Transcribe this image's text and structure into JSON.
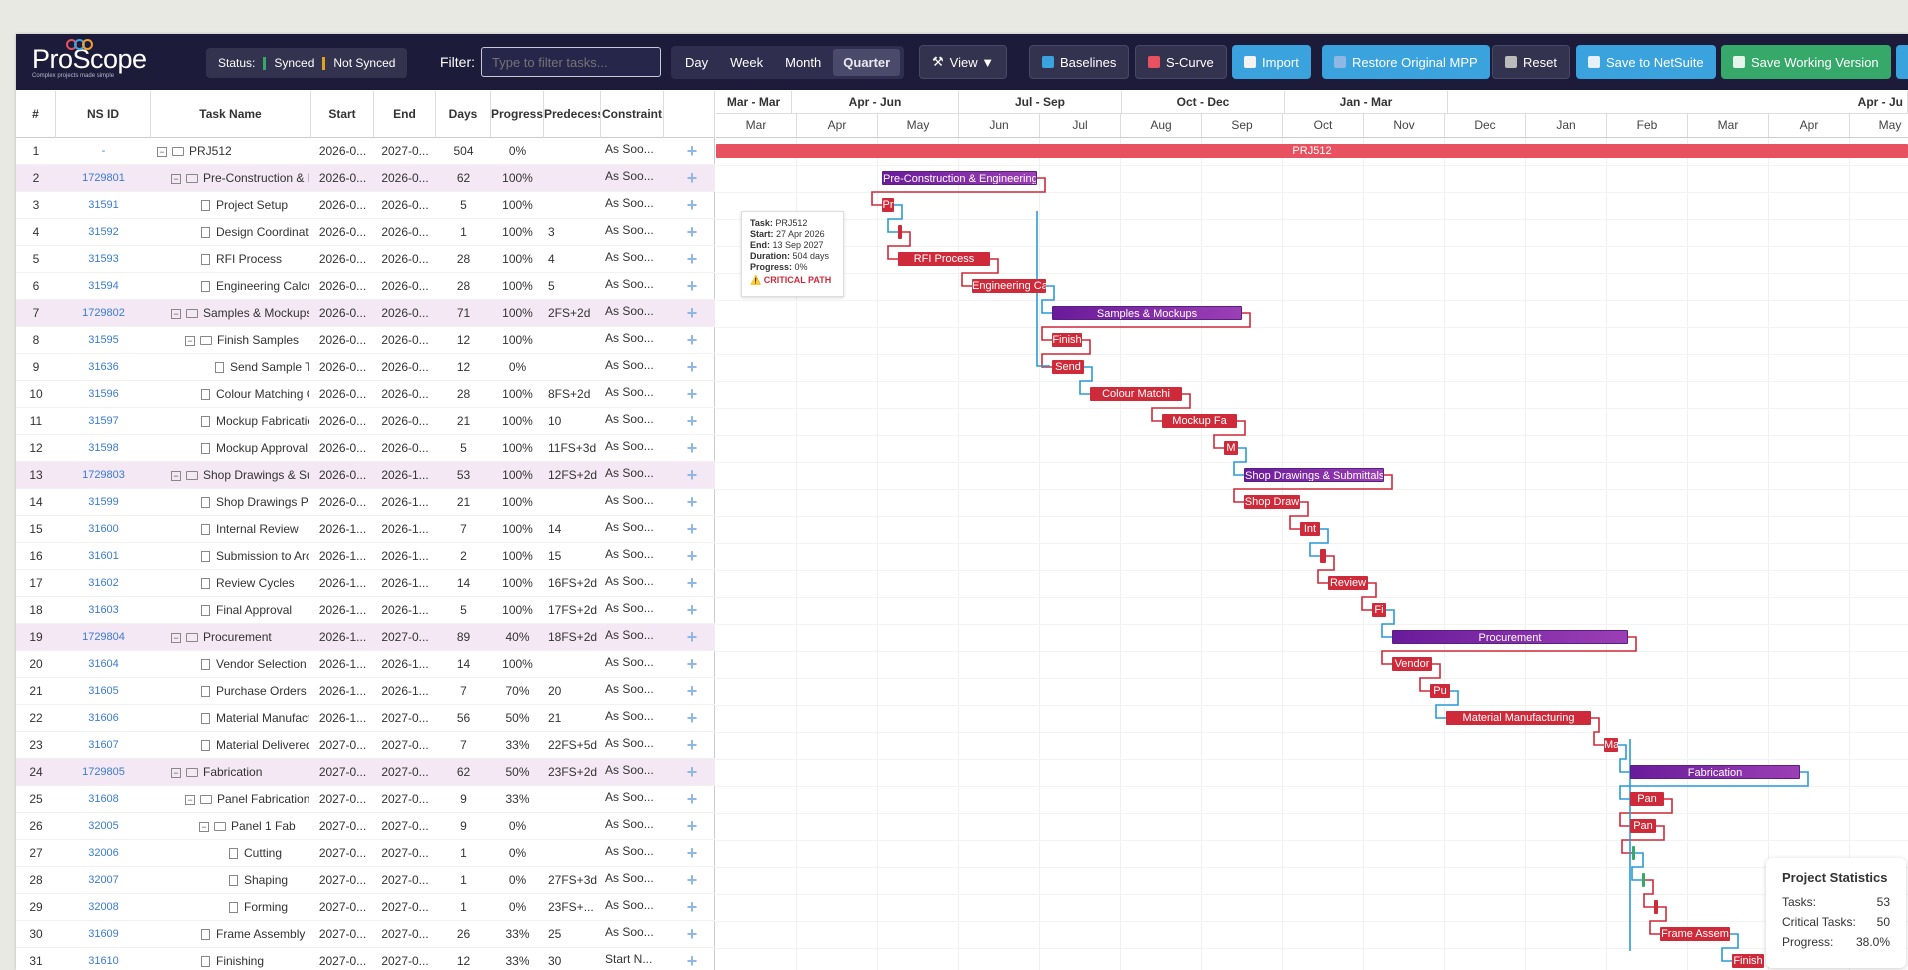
{
  "app": {
    "logo": "ProScope",
    "tagline": "Complex projects made simple"
  },
  "toolbar": {
    "status_label": "Status:",
    "synced_label": "Synced",
    "not_synced_label": "Not Synced",
    "filter_label": "Filter:",
    "filter_placeholder": "Type to filter tasks...",
    "zoom": [
      "Day",
      "Week",
      "Month",
      "Quarter"
    ],
    "zoom_active": "Quarter",
    "view_label": "View ▼",
    "baselines_label": "Baselines",
    "scurve_label": "S-Curve",
    "import_label": "Import",
    "restore_label": "Restore Original MPP",
    "reset_label": "Reset",
    "netsuite_label": "Save to NetSuite",
    "save_label": "Save Working Version"
  },
  "grid": {
    "columns": [
      "#",
      "NS ID",
      "Task Name",
      "Start",
      "End",
      "Days",
      "Progress",
      "Predecessors",
      "Constraint"
    ],
    "rows": [
      {
        "n": "1",
        "ns": "-",
        "name": "PRJ512",
        "start": "2026-0...",
        "end": "2027-0...",
        "days": "504",
        "prog": "0%",
        "pred": "",
        "cons": "As Soo...",
        "level": 0,
        "type": "folder"
      },
      {
        "n": "2",
        "ns": "1729801",
        "name": "Pre-Construction & Engineering",
        "start": "2026-0...",
        "end": "2026-0...",
        "days": "62",
        "prog": "100%",
        "pred": "",
        "cons": "As Soo...",
        "level": 1,
        "type": "folder",
        "phase": true
      },
      {
        "n": "3",
        "ns": "31591",
        "name": "Project Setup",
        "start": "2026-0...",
        "end": "2026-0...",
        "days": "5",
        "prog": "100%",
        "pred": "",
        "cons": "As Soo...",
        "level": 2,
        "type": "doc"
      },
      {
        "n": "4",
        "ns": "31592",
        "name": "Design Coordination",
        "start": "2026-0...",
        "end": "2026-0...",
        "days": "1",
        "prog": "100%",
        "pred": "3",
        "cons": "As Soo...",
        "level": 2,
        "type": "doc"
      },
      {
        "n": "5",
        "ns": "31593",
        "name": "RFI Process",
        "start": "2026-0...",
        "end": "2026-0...",
        "days": "28",
        "prog": "100%",
        "pred": "4",
        "cons": "As Soo...",
        "level": 2,
        "type": "doc"
      },
      {
        "n": "6",
        "ns": "31594",
        "name": "Engineering Calculations",
        "start": "2026-0...",
        "end": "2026-0...",
        "days": "28",
        "prog": "100%",
        "pred": "5",
        "cons": "As Soo...",
        "level": 2,
        "type": "doc"
      },
      {
        "n": "7",
        "ns": "1729802",
        "name": "Samples & Mockups",
        "start": "2026-0...",
        "end": "2026-0...",
        "days": "71",
        "prog": "100%",
        "pred": "2FS+2d",
        "cons": "As Soo...",
        "level": 1,
        "type": "folder",
        "phase": true
      },
      {
        "n": "8",
        "ns": "31595",
        "name": "Finish Samples",
        "start": "2026-0...",
        "end": "2026-0...",
        "days": "12",
        "prog": "100%",
        "pred": "",
        "cons": "As Soo...",
        "level": 2,
        "type": "folder"
      },
      {
        "n": "9",
        "ns": "31636",
        "name": "Send Sample To Architect",
        "start": "2026-0...",
        "end": "2026-0...",
        "days": "12",
        "prog": "0%",
        "pred": "",
        "cons": "As Soo...",
        "level": 3,
        "type": "doc"
      },
      {
        "n": "10",
        "ns": "31596",
        "name": "Colour Matching Cycles",
        "start": "2026-0...",
        "end": "2026-0...",
        "days": "28",
        "prog": "100%",
        "pred": "8FS+2d",
        "cons": "As Soo...",
        "level": 2,
        "type": "doc"
      },
      {
        "n": "11",
        "ns": "31597",
        "name": "Mockup Fabrication",
        "start": "2026-0...",
        "end": "2026-0...",
        "days": "21",
        "prog": "100%",
        "pred": "10",
        "cons": "As Soo...",
        "level": 2,
        "type": "doc"
      },
      {
        "n": "12",
        "ns": "31598",
        "name": "Mockup Approval",
        "start": "2026-0...",
        "end": "2026-0...",
        "days": "5",
        "prog": "100%",
        "pred": "11FS+3d",
        "cons": "As Soo...",
        "level": 2,
        "type": "doc"
      },
      {
        "n": "13",
        "ns": "1729803",
        "name": "Shop Drawings & Submittals",
        "start": "2026-0...",
        "end": "2026-1...",
        "days": "53",
        "prog": "100%",
        "pred": "12FS+2d",
        "cons": "As Soo...",
        "level": 1,
        "type": "folder",
        "phase": true
      },
      {
        "n": "14",
        "ns": "31599",
        "name": "Shop Drawings Production",
        "start": "2026-0...",
        "end": "2026-1...",
        "days": "21",
        "prog": "100%",
        "pred": "",
        "cons": "As Soo...",
        "level": 2,
        "type": "doc"
      },
      {
        "n": "15",
        "ns": "31600",
        "name": "Internal Review",
        "start": "2026-1...",
        "end": "2026-1...",
        "days": "7",
        "prog": "100%",
        "pred": "14",
        "cons": "As Soo...",
        "level": 2,
        "type": "doc"
      },
      {
        "n": "16",
        "ns": "31601",
        "name": "Submission to Architect",
        "start": "2026-1...",
        "end": "2026-1...",
        "days": "2",
        "prog": "100%",
        "pred": "15",
        "cons": "As Soo...",
        "level": 2,
        "type": "doc"
      },
      {
        "n": "17",
        "ns": "31602",
        "name": "Review Cycles",
        "start": "2026-1...",
        "end": "2026-1...",
        "days": "14",
        "prog": "100%",
        "pred": "16FS+2d",
        "cons": "As Soo...",
        "level": 2,
        "type": "doc"
      },
      {
        "n": "18",
        "ns": "31603",
        "name": "Final Approval",
        "start": "2026-1...",
        "end": "2026-1...",
        "days": "5",
        "prog": "100%",
        "pred": "17FS+2d",
        "cons": "As Soo...",
        "level": 2,
        "type": "doc"
      },
      {
        "n": "19",
        "ns": "1729804",
        "name": "Procurement",
        "start": "2026-1...",
        "end": "2027-0...",
        "days": "89",
        "prog": "40%",
        "pred": "18FS+2d",
        "cons": "As Soo...",
        "level": 1,
        "type": "folder",
        "phase": true
      },
      {
        "n": "20",
        "ns": "31604",
        "name": "Vendor Selection",
        "start": "2026-1...",
        "end": "2026-1...",
        "days": "14",
        "prog": "100%",
        "pred": "",
        "cons": "As Soo...",
        "level": 2,
        "type": "doc"
      },
      {
        "n": "21",
        "ns": "31605",
        "name": "Purchase Orders Issued",
        "start": "2026-1...",
        "end": "2026-1...",
        "days": "7",
        "prog": "70%",
        "pred": "20",
        "cons": "As Soo...",
        "level": 2,
        "type": "doc"
      },
      {
        "n": "22",
        "ns": "31606",
        "name": "Material Manufacturing",
        "start": "2026-1...",
        "end": "2027-0...",
        "days": "56",
        "prog": "50%",
        "pred": "21",
        "cons": "As Soo...",
        "level": 2,
        "type": "doc"
      },
      {
        "n": "23",
        "ns": "31607",
        "name": "Material Delivered",
        "start": "2027-0...",
        "end": "2027-0...",
        "days": "7",
        "prog": "33%",
        "pred": "22FS+5d",
        "cons": "As Soo...",
        "level": 2,
        "type": "doc"
      },
      {
        "n": "24",
        "ns": "1729805",
        "name": "Fabrication",
        "start": "2027-0...",
        "end": "2027-0...",
        "days": "62",
        "prog": "50%",
        "pred": "23FS+2d",
        "cons": "As Soo...",
        "level": 1,
        "type": "folder",
        "phase": true
      },
      {
        "n": "25",
        "ns": "31608",
        "name": "Panel Fabrication",
        "start": "2027-0...",
        "end": "2027-0...",
        "days": "9",
        "prog": "33%",
        "pred": "",
        "cons": "As Soo...",
        "level": 2,
        "type": "folder"
      },
      {
        "n": "26",
        "ns": "32005",
        "name": "Panel 1 Fab",
        "start": "2027-0...",
        "end": "2027-0...",
        "days": "9",
        "prog": "0%",
        "pred": "",
        "cons": "As Soo...",
        "level": 3,
        "type": "folder"
      },
      {
        "n": "27",
        "ns": "32006",
        "name": "Cutting",
        "start": "2027-0...",
        "end": "2027-0...",
        "days": "1",
        "prog": "0%",
        "pred": "",
        "cons": "As Soo...",
        "level": 4,
        "type": "doc"
      },
      {
        "n": "28",
        "ns": "32007",
        "name": "Shaping",
        "start": "2027-0...",
        "end": "2027-0...",
        "days": "1",
        "prog": "0%",
        "pred": "27FS+3d",
        "cons": "As Soo...",
        "level": 4,
        "type": "doc"
      },
      {
        "n": "29",
        "ns": "32008",
        "name": "Forming",
        "start": "2027-0...",
        "end": "2027-0...",
        "days": "1",
        "prog": "0%",
        "pred": "23FS+...",
        "cons": "As Soo...",
        "level": 4,
        "type": "doc"
      },
      {
        "n": "30",
        "ns": "31609",
        "name": "Frame Assembly",
        "start": "2027-0...",
        "end": "2027-0...",
        "days": "26",
        "prog": "33%",
        "pred": "25",
        "cons": "As Soo...",
        "level": 2,
        "type": "doc"
      },
      {
        "n": "31",
        "ns": "31610",
        "name": "Finishing",
        "start": "2027-0...",
        "end": "2027-0...",
        "days": "12",
        "prog": "33%",
        "pred": "30",
        "cons": "Start N...",
        "level": 2,
        "type": "doc"
      }
    ]
  },
  "timeline": {
    "quarters": [
      "Mar - Mar",
      "Apr - Jun",
      "Jul - Sep",
      "Oct - Dec",
      "Jan - Mar",
      "Apr - Ju"
    ],
    "months": [
      "Mar",
      "Apr",
      "May",
      "Jun",
      "Jul",
      "Aug",
      "Sep",
      "Oct",
      "Nov",
      "Dec",
      "Jan",
      "Feb",
      "Mar",
      "Apr",
      "May"
    ]
  },
  "bars": [
    {
      "label": "PRJ512",
      "kind": "proj",
      "row": 0
    },
    {
      "label": "Pre-Construction & Engineering",
      "kind": "sum",
      "row": 1
    },
    {
      "label": "Pr",
      "kind": "crit",
      "row": 2
    },
    {
      "label": "",
      "kind": "crit",
      "row": 3
    },
    {
      "label": "RFI Process",
      "kind": "crit",
      "row": 4
    },
    {
      "label": "Engineering Ca",
      "kind": "crit",
      "row": 5
    },
    {
      "label": "Samples & Mockups",
      "kind": "sum",
      "row": 6
    },
    {
      "label": "Finish",
      "kind": "crit",
      "row": 7
    },
    {
      "label": "Send",
      "kind": "crit",
      "row": 8
    },
    {
      "label": "Colour Matchi",
      "kind": "crit",
      "row": 9
    },
    {
      "label": "Mockup Fa",
      "kind": "crit",
      "row": 10
    },
    {
      "label": "M",
      "kind": "crit",
      "row": 11
    },
    {
      "label": "Shop Drawings & Submittals",
      "kind": "sum",
      "row": 12
    },
    {
      "label": "Shop Draw",
      "kind": "crit",
      "row": 13
    },
    {
      "label": "Int",
      "kind": "crit",
      "row": 14
    },
    {
      "label": "",
      "kind": "crit",
      "row": 15
    },
    {
      "label": "Review",
      "kind": "crit",
      "row": 16
    },
    {
      "label": "Fi",
      "kind": "crit",
      "row": 17
    },
    {
      "label": "Procurement",
      "kind": "sum",
      "row": 18
    },
    {
      "label": "Vendor",
      "kind": "crit",
      "row": 19
    },
    {
      "label": "Pu",
      "kind": "crit",
      "row": 20
    },
    {
      "label": "Material Manufacturing",
      "kind": "crit",
      "row": 21
    },
    {
      "label": "Ma",
      "kind": "crit",
      "row": 22
    },
    {
      "label": "Fabrication",
      "kind": "sum",
      "row": 23
    },
    {
      "label": "Pan",
      "kind": "crit",
      "row": 24
    },
    {
      "label": "Pan",
      "kind": "crit",
      "row": 25
    },
    {
      "label": "",
      "kind": "green",
      "row": 26
    },
    {
      "label": "",
      "kind": "green",
      "row": 27
    },
    {
      "label": "",
      "kind": "crit",
      "row": 28
    },
    {
      "label": "Frame Assem",
      "kind": "crit",
      "row": 29
    },
    {
      "label": "Finish",
      "kind": "crit",
      "row": 30
    }
  ],
  "tooltip": {
    "task_label": "Task:",
    "task": "PRJ512",
    "start_label": "Start:",
    "start": "27 Apr 2026",
    "end_label": "End:",
    "end": "13 Sep 2027",
    "duration_label": "Duration:",
    "duration": "504 days",
    "progress_label": "Progress:",
    "progress": "0%",
    "critical": "⚠️ CRITICAL PATH"
  },
  "stats": {
    "title": "Project Statistics",
    "tasks_label": "Tasks:",
    "tasks": "53",
    "critical_label": "Critical Tasks:",
    "critical": "50",
    "progress_label": "Progress:",
    "progress": "38.0%"
  },
  "colors": {
    "toolbar": "#1c1b39",
    "critical": "#cf2a3a",
    "summary": "#7b2ca3",
    "link_blue": "#2a9ad6",
    "accent_blue": "#3aa3dd",
    "save_green": "#35a86a"
  }
}
